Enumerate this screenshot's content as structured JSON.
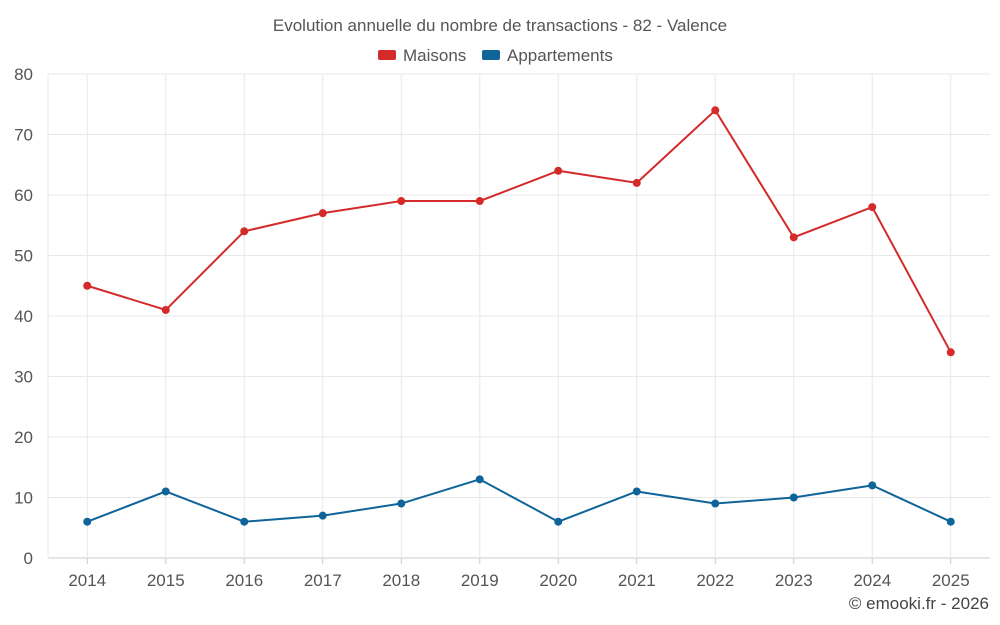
{
  "chart_data": {
    "type": "line",
    "title": "Evolution annuelle du nombre de transactions - 82 - Valence",
    "x": [
      "2014",
      "2015",
      "2016",
      "2017",
      "2018",
      "2019",
      "2020",
      "2021",
      "2022",
      "2023",
      "2024",
      "2025"
    ],
    "series": [
      {
        "name": "Maisons",
        "color": "#d42a2a",
        "values": [
          45,
          41,
          54,
          57,
          59,
          59,
          64,
          62,
          74,
          53,
          58,
          34
        ]
      },
      {
        "name": "Appartements",
        "color": "#0f6499",
        "values": [
          6,
          11,
          6,
          7,
          9,
          13,
          6,
          11,
          9,
          10,
          12,
          6
        ]
      }
    ],
    "ylim": [
      0,
      80
    ],
    "yticks": [
      0,
      10,
      20,
      30,
      40,
      50,
      60,
      70,
      80
    ],
    "grid": true,
    "legend": "top-center",
    "xlabel": "",
    "ylabel": ""
  },
  "credit": "© emooki.fr - 2026"
}
